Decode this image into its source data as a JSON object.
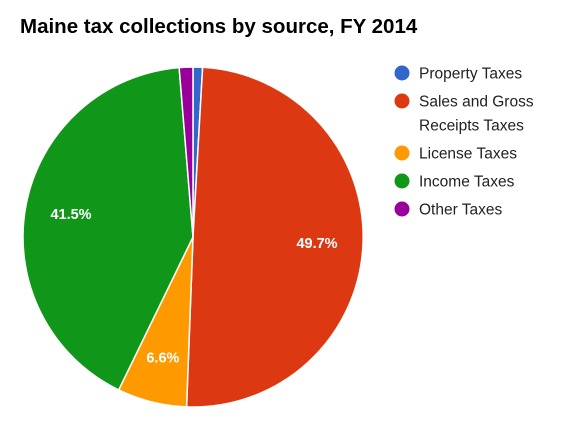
{
  "chart_data": {
    "type": "pie",
    "title": "Maine tax collections by source, FY 2014",
    "legend_position": "right",
    "slices": [
      {
        "name": "Property Taxes",
        "value": 0.9,
        "color": "#3366cc",
        "label": ""
      },
      {
        "name": "Sales and Gross Receipts Taxes",
        "value": 49.7,
        "color": "#dc3912",
        "label": "49.7%"
      },
      {
        "name": "License Taxes",
        "value": 6.6,
        "color": "#ff9900",
        "label": "6.6%"
      },
      {
        "name": "Income Taxes",
        "value": 41.5,
        "color": "#109618",
        "label": "41.5%"
      },
      {
        "name": "Other Taxes",
        "value": 1.3,
        "color": "#990099",
        "label": ""
      }
    ]
  }
}
